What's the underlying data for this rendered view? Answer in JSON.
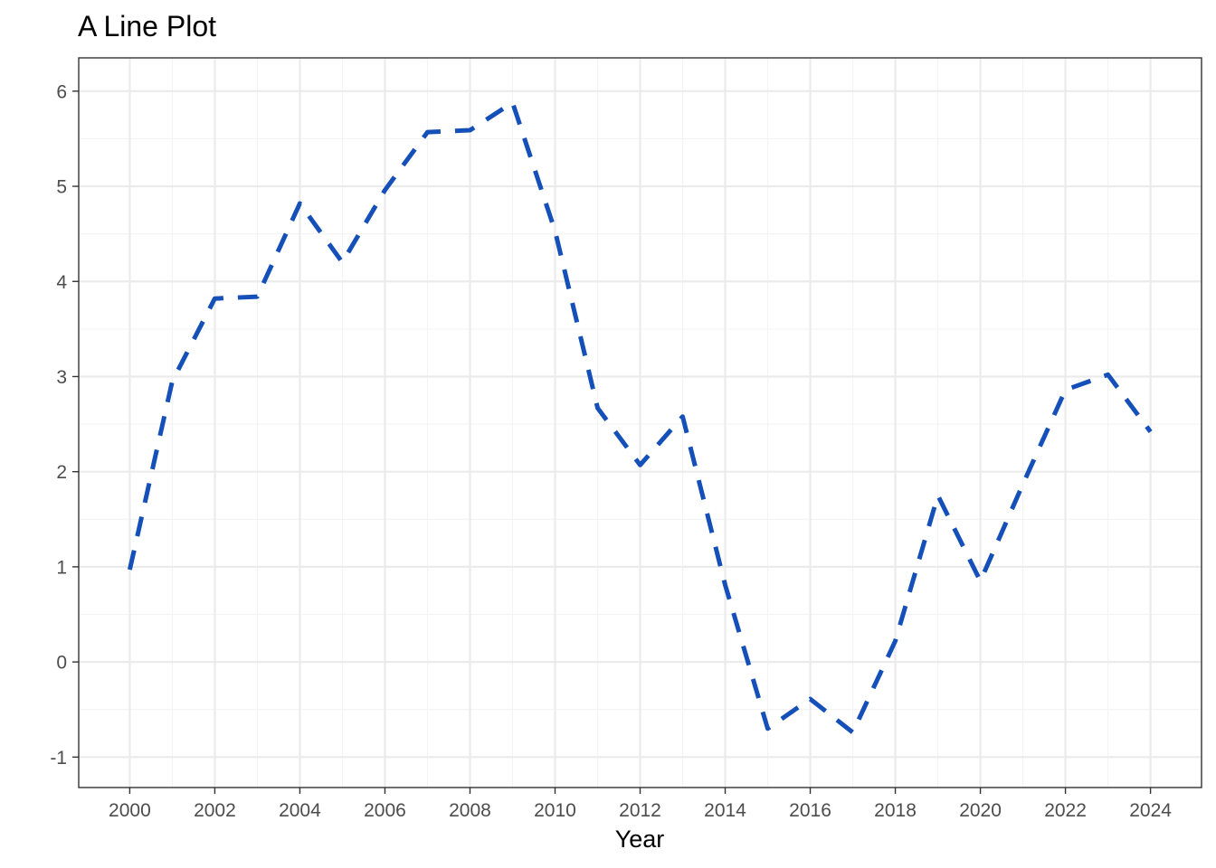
{
  "chart_data": {
    "type": "line",
    "title": "A Line Plot",
    "xlabel": "Year",
    "ylabel": "",
    "xlim": [
      1998.8,
      2025.2
    ],
    "ylim": [
      -1.32,
      6.35
    ],
    "x_ticks": [
      2000,
      2002,
      2004,
      2006,
      2008,
      2010,
      2012,
      2014,
      2016,
      2018,
      2020,
      2022,
      2024
    ],
    "x_tick_labels": [
      "2000",
      "2002",
      "2004",
      "2006",
      "2008",
      "2010",
      "2012",
      "2014",
      "2016",
      "2018",
      "2020",
      "2022",
      "2024"
    ],
    "y_ticks": [
      -1,
      0,
      1,
      2,
      3,
      4,
      5,
      6
    ],
    "y_tick_labels": [
      "-1",
      "0",
      "1",
      "2",
      "3",
      "4",
      "5",
      "6"
    ],
    "grid": true,
    "legend": "none",
    "series": [
      {
        "color": "#1550b8",
        "line_style": "dashed",
        "x": [
          2000,
          2001,
          2002,
          2003,
          2004,
          2005,
          2006,
          2007,
          2008,
          2009,
          2010,
          2011,
          2012,
          2013,
          2014,
          2015,
          2016,
          2017,
          2018,
          2019,
          2020,
          2021,
          2022,
          2023,
          2024
        ],
        "values": [
          0.97,
          2.95,
          3.82,
          3.84,
          4.82,
          4.2,
          4.96,
          5.57,
          5.59,
          5.88,
          4.53,
          2.67,
          2.07,
          2.58,
          0.81,
          -0.7,
          -0.39,
          -0.74,
          0.22,
          1.75,
          0.85,
          1.87,
          2.86,
          3.02,
          2.42
        ]
      }
    ]
  }
}
